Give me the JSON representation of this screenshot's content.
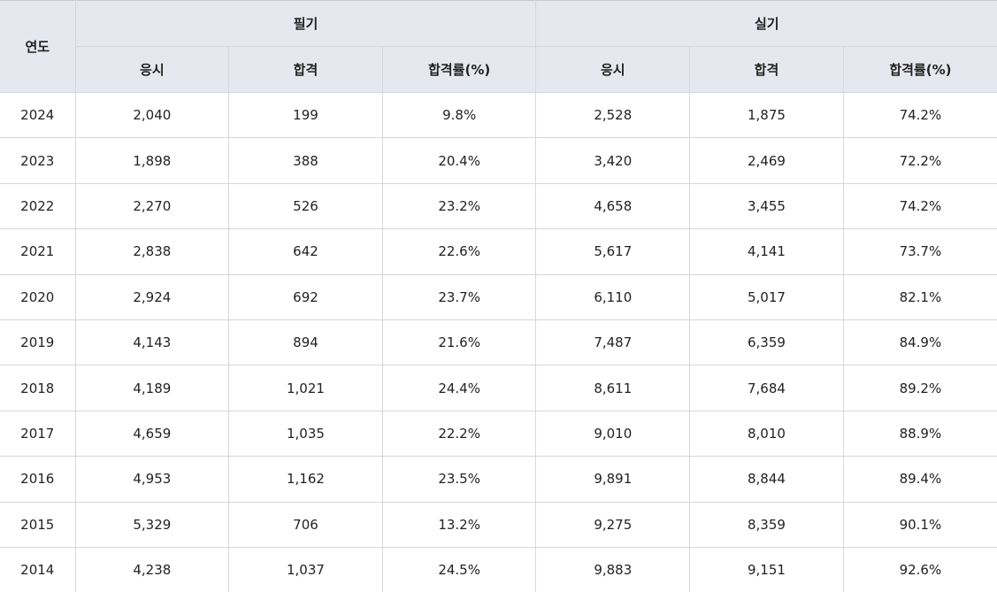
{
  "table": {
    "header": {
      "year": "연도",
      "written": "필기",
      "practical": "실기",
      "sub": [
        "응시",
        "합격",
        "합격률(%)",
        "응시",
        "합격",
        "합격률(%)"
      ]
    },
    "rows": [
      [
        "2024",
        "2,040",
        "199",
        "9.8%",
        "2,528",
        "1,875",
        "74.2%"
      ],
      [
        "2023",
        "1,898",
        "388",
        "20.4%",
        "3,420",
        "2,469",
        "72.2%"
      ],
      [
        "2022",
        "2,270",
        "526",
        "23.2%",
        "4,658",
        "3,455",
        "74.2%"
      ],
      [
        "2021",
        "2,838",
        "642",
        "22.6%",
        "5,617",
        "4,141",
        "73.7%"
      ],
      [
        "2020",
        "2,924",
        "692",
        "23.7%",
        "6,110",
        "5,017",
        "82.1%"
      ],
      [
        "2019",
        "4,143",
        "894",
        "21.6%",
        "7,487",
        "6,359",
        "84.9%"
      ],
      [
        "2018",
        "4,189",
        "1,021",
        "24.4%",
        "8,611",
        "7,684",
        "89.2%"
      ],
      [
        "2017",
        "4,659",
        "1,035",
        "22.2%",
        "9,010",
        "8,010",
        "88.9%"
      ],
      [
        "2016",
        "4,953",
        "1,162",
        "23.5%",
        "9,891",
        "8,844",
        "89.4%"
      ],
      [
        "2015",
        "5,329",
        "706",
        "13.2%",
        "9,275",
        "8,359",
        "90.1%"
      ],
      [
        "2014",
        "4,238",
        "1,037",
        "24.5%",
        "9,883",
        "9,151",
        "92.6%"
      ]
    ]
  }
}
